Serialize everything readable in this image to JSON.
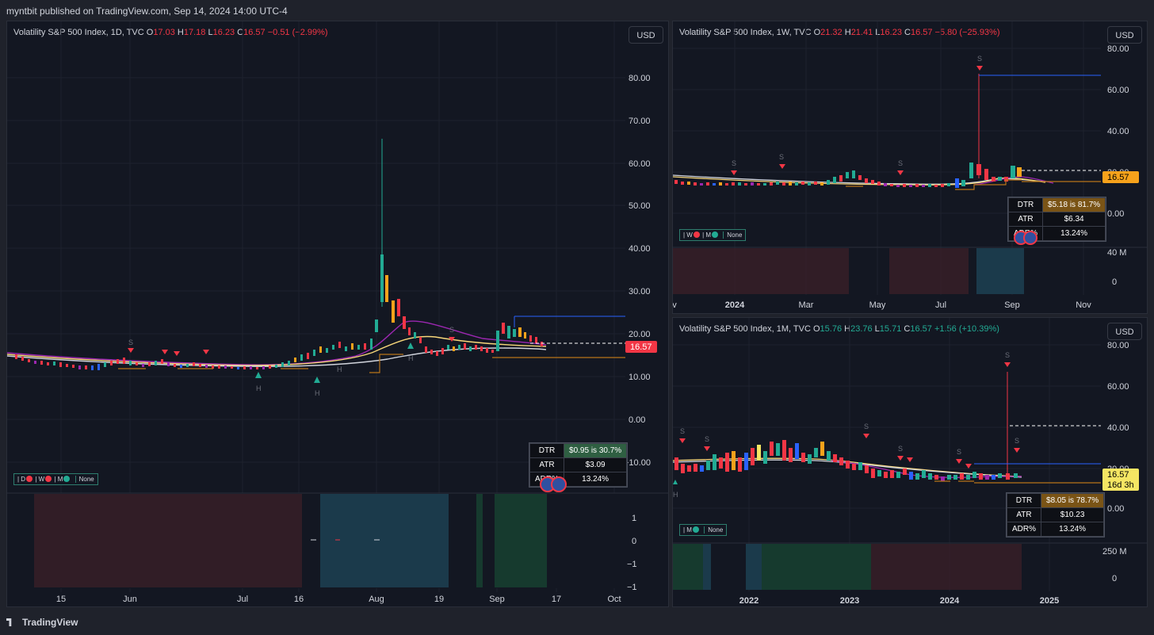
{
  "publisher": {
    "text": "myntbit published on TradingView.com, Sep 14, 2024 14:00 UTC-4"
  },
  "footer": {
    "brand": "TradingView"
  },
  "panels": {
    "daily": {
      "title": "Volatility S&P 500 Index, 1D, TVC",
      "o_label": "O",
      "o": "17.03",
      "h_label": "H",
      "h": "17.18",
      "l_label": "L",
      "l": "16.23",
      "c_label": "C",
      "c": "16.57",
      "chg": "−0.51 (−2.99%)",
      "currency": "USD",
      "price_axis": [
        "80.00",
        "70.00",
        "60.00",
        "50.00",
        "40.00",
        "30.00",
        "20.00",
        "10.00",
        "0.00",
        "−10.00"
      ],
      "last_price": "16.57",
      "sub_axis": [
        "1",
        "0",
        "−1",
        "−1"
      ],
      "time_axis": [
        "15",
        "Jun",
        "Jul",
        "16",
        "Aug",
        "19",
        "Sep",
        "17",
        "Oct"
      ],
      "legend": {
        "d": "| D",
        "w": "| W",
        "m": "| M",
        "none": "None"
      },
      "marker_s": "S",
      "marker_h": "H",
      "dtr": {
        "r1l": "DTR",
        "r1v": "$0.95 is 30.7%",
        "r2l": "ATR",
        "r2v": "$3.09",
        "r3l": "ADR%",
        "r3v": "13.24%"
      }
    },
    "weekly": {
      "title": "Volatility S&P 500 Index, 1W, TVC",
      "o_label": "O",
      "o": "21.32",
      "h_label": "H",
      "h": "21.41",
      "l_label": "L",
      "l": "16.23",
      "c_label": "C",
      "c": "16.57",
      "chg": "−5.80 (−25.93%)",
      "currency": "USD",
      "price_axis": [
        "80.00",
        "60.00",
        "40.00",
        "20.00",
        "0.00"
      ],
      "last_price": "16.57",
      "sub_axis": [
        "40 M",
        "0"
      ],
      "time_axis": [
        "v",
        "2024",
        "Mar",
        "May",
        "Jul",
        "Sep",
        "Nov"
      ],
      "legend": {
        "w": "| W",
        "m": "| M",
        "none": "None"
      },
      "marker_s": "S",
      "dtr": {
        "r1l": "DTR",
        "r1v": "$5.18 is 81.7%",
        "r2l": "ATR",
        "r2v": "$6.34",
        "r3l": "ADR%",
        "r3v": "13.24%"
      }
    },
    "monthly": {
      "title": "Volatility S&P 500 Index, 1M, TVC",
      "o_label": "O",
      "o": "15.76",
      "h_label": "H",
      "h": "23.76",
      "l_label": "L",
      "l": "15.71",
      "c_label": "C",
      "c": "16.57",
      "chg": "+1.56 (+10.39%)",
      "currency": "USD",
      "price_axis": [
        "80.00",
        "60.00",
        "40.00",
        "20.00",
        "0.00"
      ],
      "last_price": "16.57",
      "countdown": "16d 3h",
      "sub_axis": [
        "250 M",
        "0"
      ],
      "time_axis": [
        "2022",
        "2023",
        "2024",
        "2025"
      ],
      "legend": {
        "m": "| M",
        "none": "None"
      },
      "marker_s": "S",
      "marker_h": "H",
      "dtr": {
        "r1l": "DTR",
        "r1v": "$8.05 is 78.7%",
        "r2l": "ATR",
        "r2v": "$10.23",
        "r3l": "ADR%",
        "r3v": "13.24%"
      }
    }
  },
  "colors": {
    "bg": "#131722",
    "up": "#22ab94",
    "down": "#f23645",
    "accent": "#f7a21b",
    "grid": "#1e222d"
  }
}
